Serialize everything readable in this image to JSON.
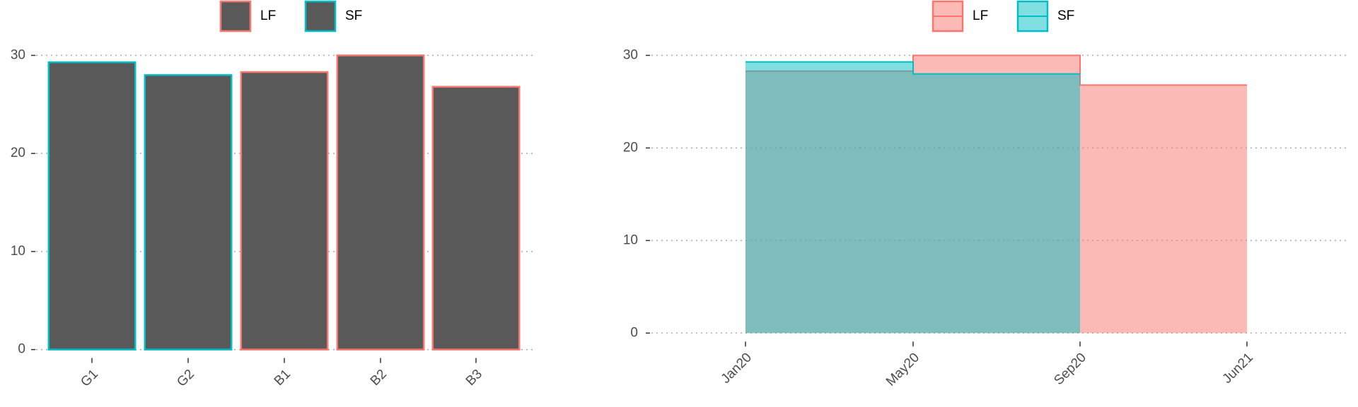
{
  "chart_data": [
    {
      "type": "bar",
      "categories": [
        "G1",
        "G2",
        "B1",
        "B2",
        "B3"
      ],
      "series": [
        {
          "name": "LF",
          "color": "#F8766D",
          "values": [
            null,
            null,
            28.3,
            30.0,
            26.8
          ]
        },
        {
          "name": "SF",
          "color": "#00BFC4",
          "values": [
            29.3,
            28.0,
            null,
            null,
            null
          ]
        }
      ],
      "fill": "#595959",
      "ylim": [
        -1.5,
        31.5
      ],
      "yticks": [
        0,
        10,
        20,
        30
      ],
      "grid": true,
      "legend": "top"
    },
    {
      "type": "step-area",
      "categories": [
        "Jan20",
        "May20",
        "Sep20",
        "Jun21"
      ],
      "series": [
        {
          "name": "LF",
          "color": "#F8766D",
          "values": [
            28.3,
            30.0,
            26.8,
            26.8
          ]
        },
        {
          "name": "SF",
          "color": "#00BFC4",
          "values": [
            29.3,
            28.0,
            28.0,
            null
          ]
        }
      ],
      "ylim": [
        -1.5,
        31.5
      ],
      "yticks": [
        0,
        10,
        20,
        30
      ],
      "grid": true,
      "legend": "top"
    }
  ]
}
